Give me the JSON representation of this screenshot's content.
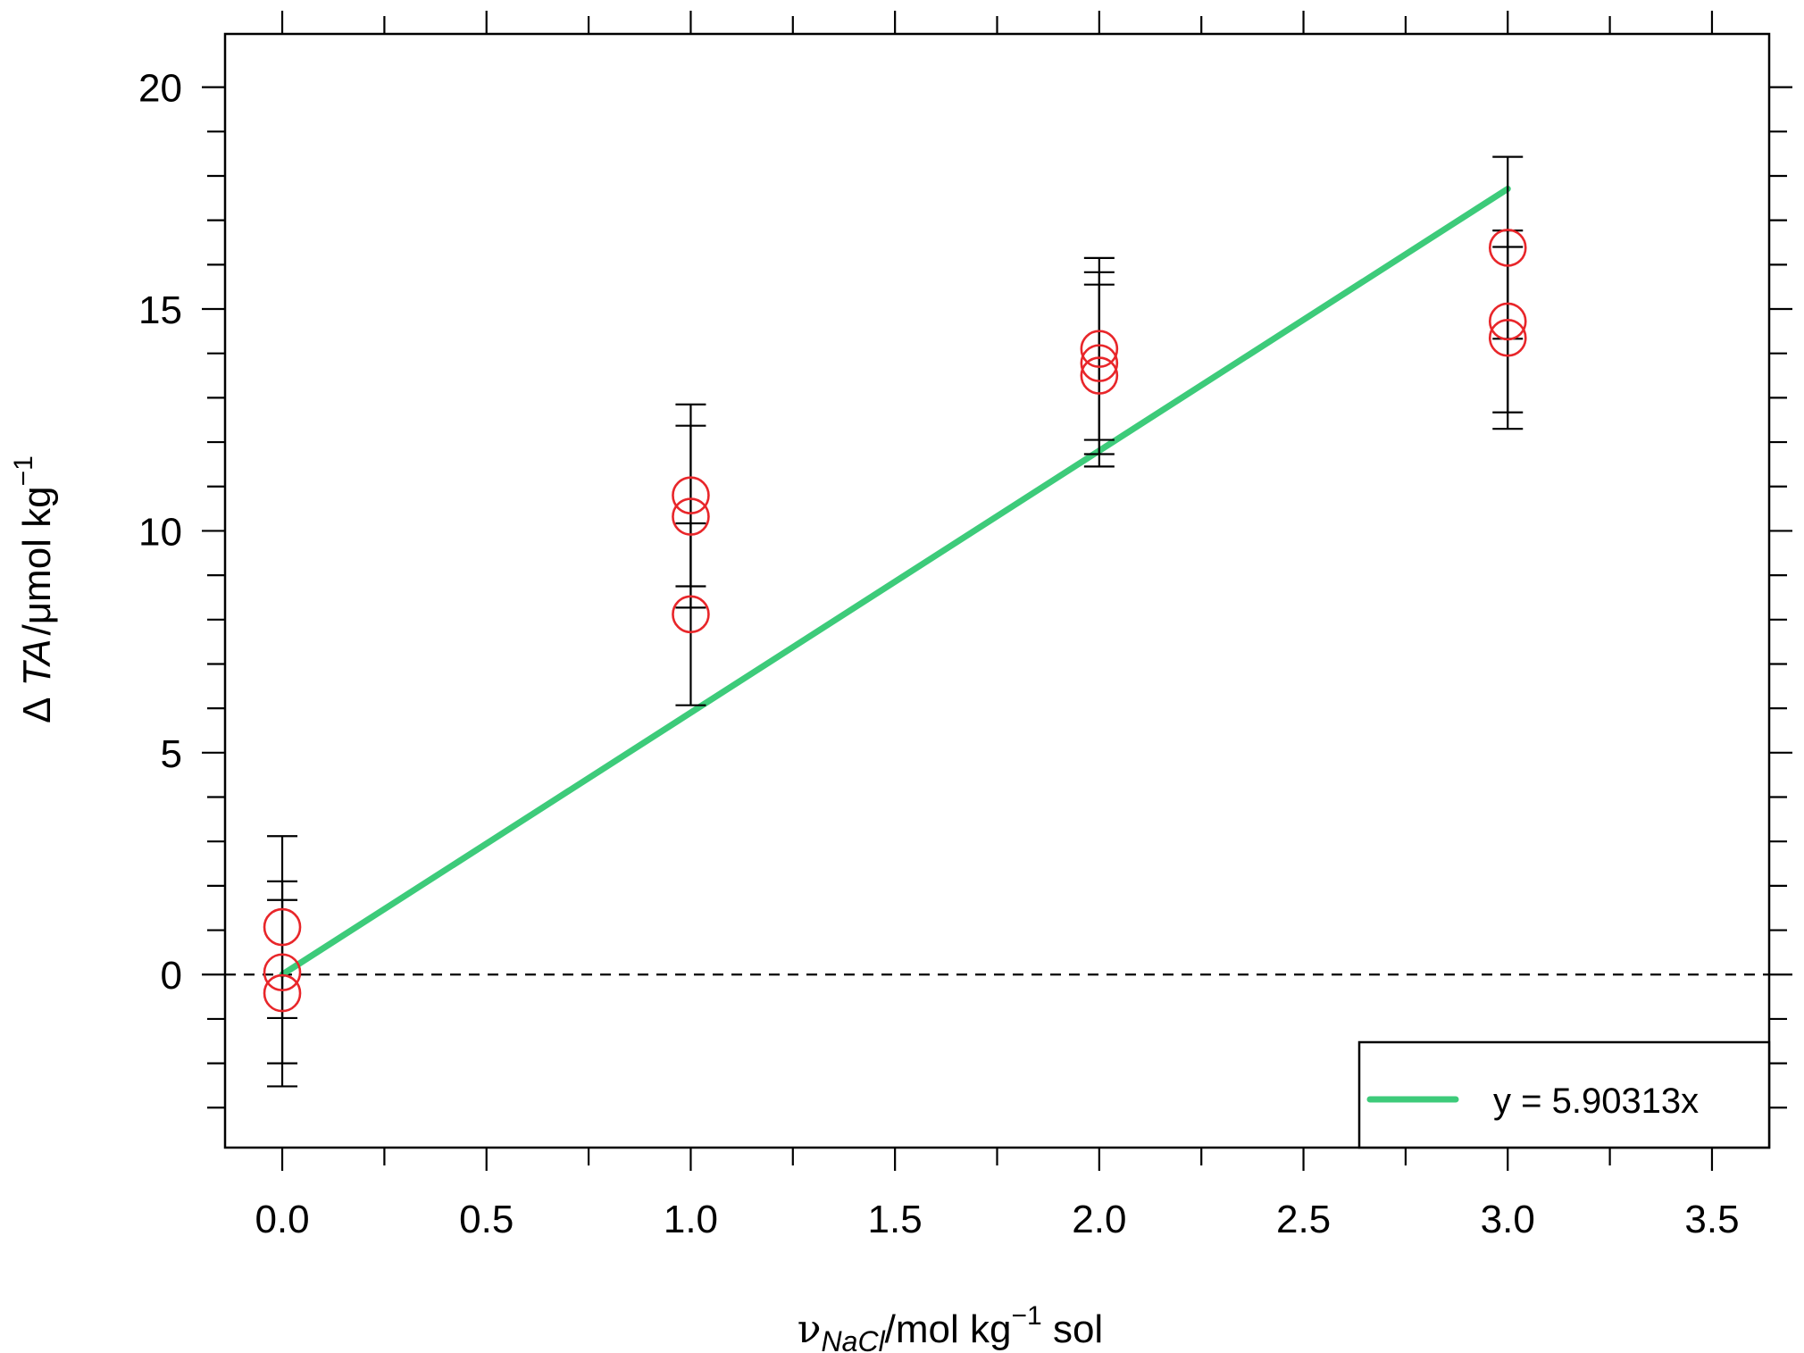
{
  "chart_data": {
    "type": "scatter",
    "xlabel": {
      "symbol": "ν",
      "subscript": "NaCl",
      "unit_main": "/mol kg",
      "unit_sup": "−1",
      "unit_tail": " sol"
    },
    "ylabel": {
      "delta": "Δ",
      "symbol": "TA",
      "unit_main": "/μmol kg",
      "unit_sup": "−1"
    },
    "xlim": [
      -0.14,
      3.64
    ],
    "ylim": [
      -3.9,
      21.2
    ],
    "x_ticks": [
      0.0,
      0.5,
      1.0,
      1.5,
      2.0,
      2.5,
      3.0,
      3.5
    ],
    "x_tick_labels": [
      "0.0",
      "0.5",
      "1.0",
      "1.5",
      "2.0",
      "2.5",
      "3.0",
      "3.5"
    ],
    "x_minor_ticks": [
      0.25,
      0.75,
      1.25,
      1.75,
      2.25,
      2.75,
      3.25
    ],
    "y_ticks": [
      0,
      5,
      10,
      15,
      20
    ],
    "y_tick_labels": [
      "0",
      "5",
      "10",
      "15",
      "20"
    ],
    "y_minor_ticks": [
      -3,
      -2,
      -1,
      1,
      2,
      3,
      4,
      6,
      7,
      8,
      9,
      11,
      12,
      13,
      14,
      16,
      17,
      18,
      19
    ],
    "reference_line": {
      "y": 0,
      "style": "dashed"
    },
    "series": [
      {
        "marker": "open-circle",
        "color": "#e8262a",
        "points": [
          {
            "x": 0.0,
            "y": 1.07,
            "err": 2.05
          },
          {
            "x": 0.0,
            "y": 0.05,
            "err": 2.05
          },
          {
            "x": 0.0,
            "y": -0.42,
            "err": 2.1
          },
          {
            "x": 1.0,
            "y": 10.8,
            "err": 2.05
          },
          {
            "x": 1.0,
            "y": 10.32,
            "err": 2.05
          },
          {
            "x": 1.0,
            "y": 8.12,
            "err": 2.05
          },
          {
            "x": 2.0,
            "y": 14.1,
            "err": 2.05
          },
          {
            "x": 2.0,
            "y": 13.78,
            "err": 2.05
          },
          {
            "x": 2.0,
            "y": 13.5,
            "err": 2.05
          },
          {
            "x": 3.0,
            "y": 16.38,
            "err": 2.05
          },
          {
            "x": 3.0,
            "y": 14.72,
            "err": 2.05
          },
          {
            "x": 3.0,
            "y": 14.35,
            "err": 2.05
          }
        ]
      }
    ],
    "fit": {
      "label": "y = 5.90313x",
      "slope": 5.90313,
      "x_range": [
        0,
        3
      ],
      "color": "#3dcb7a"
    },
    "legend": {
      "position": "bottom-right"
    }
  }
}
